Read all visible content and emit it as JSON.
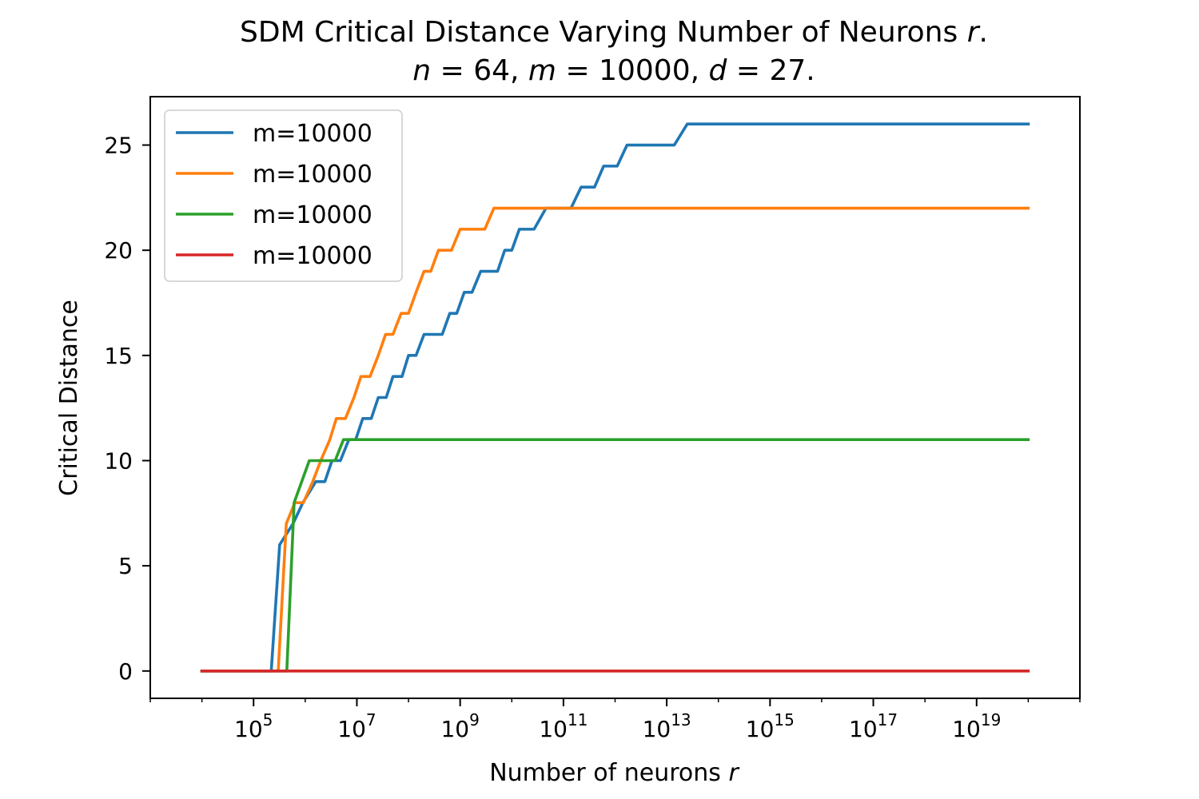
{
  "chart_data": {
    "type": "line",
    "title": "SDM Critical Distance Varying Number of Neurons r.",
    "subtitle": "n = 64, m = 10000, d = 27.",
    "xlabel": "Number of neurons r",
    "ylabel": "Critical Distance",
    "xscale": "log",
    "xlim": [
      1000.0,
      1e+21
    ],
    "ylim": [
      -1.3,
      27.3
    ],
    "grid": false,
    "legend_position": "top-left",
    "x_ticks": [
      {
        "base": "10",
        "exp": "5",
        "value": 100000.0
      },
      {
        "base": "10",
        "exp": "7",
        "value": 10000000.0
      },
      {
        "base": "10",
        "exp": "9",
        "value": 1000000000.0
      },
      {
        "base": "10",
        "exp": "11",
        "value": 100000000000.0
      },
      {
        "base": "10",
        "exp": "13",
        "value": 10000000000000.0
      },
      {
        "base": "10",
        "exp": "15",
        "value": 1000000000000000.0
      },
      {
        "base": "10",
        "exp": "17",
        "value": 1e+17
      },
      {
        "base": "10",
        "exp": "19",
        "value": 1e+19
      }
    ],
    "y_ticks": [
      0,
      5,
      10,
      15,
      20,
      25
    ],
    "series": [
      {
        "name": "m=10000",
        "color": "#1f77b4",
        "points": [
          [
            10000.0,
            0
          ],
          [
            220000.0,
            0
          ],
          [
            320000.0,
            6
          ],
          [
            580000.0,
            7
          ],
          [
            900000.0,
            8
          ],
          [
            1600000.0,
            9
          ],
          [
            2400000.0,
            9
          ],
          [
            3300000.0,
            10
          ],
          [
            4800000.0,
            10
          ],
          [
            7000000.0,
            11
          ],
          [
            9500000.0,
            11
          ],
          [
            13000000.0,
            12
          ],
          [
            19000000.0,
            12
          ],
          [
            26000000.0,
            13
          ],
          [
            37000000.0,
            13
          ],
          [
            50000000.0,
            14
          ],
          [
            75000000.0,
            14
          ],
          [
            100000000.0,
            15
          ],
          [
            140000000.0,
            15
          ],
          [
            200000000.0,
            16
          ],
          [
            450000000.0,
            16
          ],
          [
            630000000.0,
            17
          ],
          [
            860000000.0,
            17
          ],
          [
            1200000000.0,
            18
          ],
          [
            1700000000.0,
            18
          ],
          [
            2500000000.0,
            19
          ],
          [
            5300000000.0,
            19
          ],
          [
            7300000000.0,
            20
          ],
          [
            10000000000.0,
            20
          ],
          [
            14000000000.0,
            21
          ],
          [
            27000000000.0,
            21
          ],
          [
            46000000000.0,
            22
          ],
          [
            140000000000.0,
            22
          ],
          [
            220000000000.0,
            23
          ],
          [
            400000000000.0,
            23
          ],
          [
            600000000000.0,
            24
          ],
          [
            1100000000000.0,
            24
          ],
          [
            1700000000000.0,
            25
          ],
          [
            14000000000000.0,
            25
          ],
          [
            25000000000000.0,
            26
          ],
          [
            1e+20,
            26
          ]
        ]
      },
      {
        "name": "m=10000",
        "color": "#ff7f0e",
        "points": [
          [
            10000.0,
            0
          ],
          [
            300000.0,
            0
          ],
          [
            430000.0,
            7
          ],
          [
            630000.0,
            8
          ],
          [
            920000.0,
            8
          ],
          [
            1400000.0,
            9
          ],
          [
            2000000.0,
            10
          ],
          [
            3000000.0,
            11
          ],
          [
            4000000.0,
            12
          ],
          [
            6000000.0,
            12
          ],
          [
            8800000.0,
            13
          ],
          [
            12000000.0,
            14
          ],
          [
            18000000.0,
            14
          ],
          [
            26000000.0,
            15
          ],
          [
            36000000.0,
            16
          ],
          [
            50000000.0,
            16
          ],
          [
            72000000.0,
            17
          ],
          [
            100000000.0,
            17
          ],
          [
            140000000.0,
            18
          ],
          [
            200000000.0,
            19
          ],
          [
            270000000.0,
            19
          ],
          [
            380000000.0,
            20
          ],
          [
            680000000.0,
            20
          ],
          [
            1000000000.0,
            21
          ],
          [
            1500000000.0,
            21
          ],
          [
            3000000000.0,
            21
          ],
          [
            4500000000.0,
            22
          ],
          [
            1e+20,
            22
          ]
        ]
      },
      {
        "name": "m=10000",
        "color": "#2ca02c",
        "points": [
          [
            10000.0,
            0
          ],
          [
            440000.0,
            0
          ],
          [
            610000.0,
            8
          ],
          [
            1200000.0,
            10
          ],
          [
            3800000.0,
            10
          ],
          [
            5500000.0,
            11
          ],
          [
            1e+20,
            11
          ]
        ]
      },
      {
        "name": "m=10000",
        "color": "#d62728",
        "points": [
          [
            10000.0,
            0
          ],
          [
            1e+20,
            0
          ]
        ]
      }
    ]
  }
}
